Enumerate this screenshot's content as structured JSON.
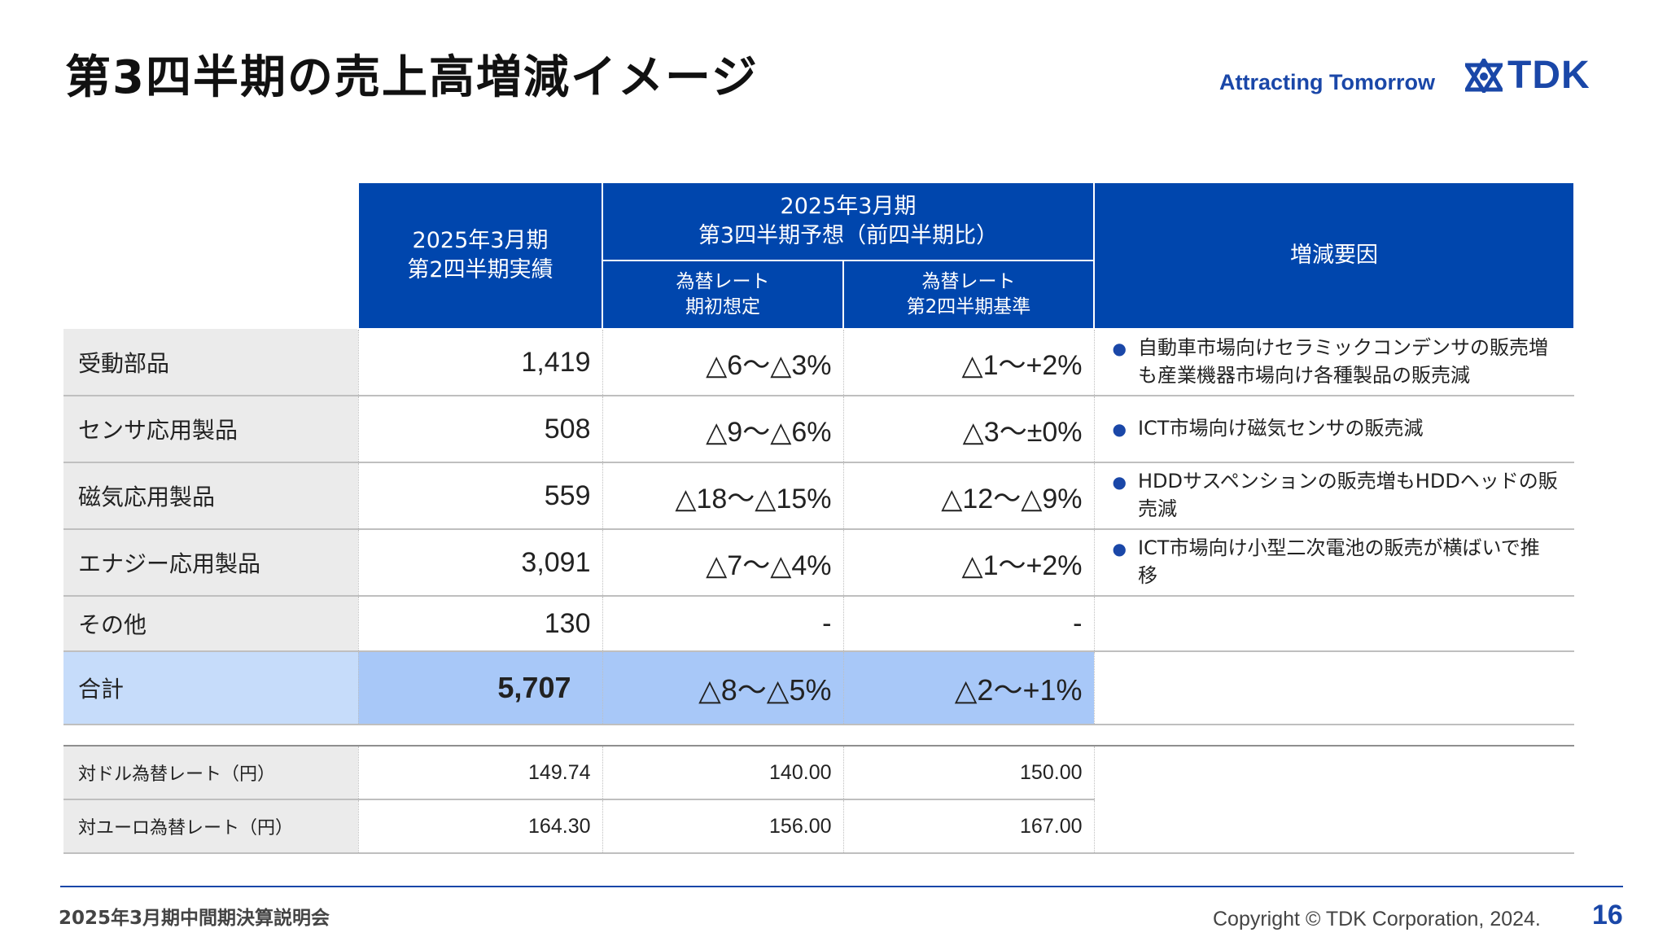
{
  "header": {
    "title": "第3四半期の売上高増減イメージ",
    "tagline": "Attracting Tomorrow",
    "logo_text": "TDK",
    "brand_color": "#1a47a8"
  },
  "table": {
    "headers": {
      "actual_line1": "2025年3月期",
      "actual_line2": "第2四半期実績",
      "forecast_line1": "2025年3月期",
      "forecast_line2": "第3四半期予想（前四半期比）",
      "fx_initial_line1": "為替レート",
      "fx_initial_line2": "期初想定",
      "fx_q2_line1": "為替レート",
      "fx_q2_line2": "第2四半期基準",
      "reasons": "増減要因"
    },
    "header_color": "#0046ad",
    "rows": [
      {
        "category": "受動部品",
        "actual": "1,419",
        "fx_initial": "△6～△3%",
        "fx_q2": "△1～+2%",
        "reason": "自動車市場向けセラミックコンデンサの販売増も産業機器市場向け各種製品の販売減"
      },
      {
        "category": "センサ応用製品",
        "actual": "508",
        "fx_initial": "△9～△6%",
        "fx_q2": "△3～±0%",
        "reason": "ICT市場向け磁気センサの販売減"
      },
      {
        "category": "磁気応用製品",
        "actual": "559",
        "fx_initial": "△18～△15%",
        "fx_q2": "△12～△9%",
        "reason": "HDDサスペンションの販売増もHDDヘッドの販売減"
      },
      {
        "category": "エナジー応用製品",
        "actual": "3,091",
        "fx_initial": "△7～△4%",
        "fx_q2": "△1～+2%",
        "reason": "ICT市場向け小型二次電池の販売が横ばいで推移"
      },
      {
        "category": "その他",
        "actual": "130",
        "fx_initial": "-",
        "fx_q2": "-",
        "reason": ""
      }
    ],
    "total": {
      "category": "合計",
      "actual": "5,707",
      "fx_initial": "△8～△5%",
      "fx_q2": "△2～+1%"
    }
  },
  "fx_rates": [
    {
      "label": "対ドル為替レート（円）",
      "actual": "149.74",
      "fx_initial": "140.00",
      "fx_q2": "150.00"
    },
    {
      "label": "対ユーロ為替レート（円）",
      "actual": "164.30",
      "fx_initial": "156.00",
      "fx_q2": "167.00"
    }
  ],
  "footer": {
    "event": "2025年3月期中間期決算説明会",
    "copyright": "Copyright © TDK Corporation, 2024.",
    "page": "16"
  }
}
